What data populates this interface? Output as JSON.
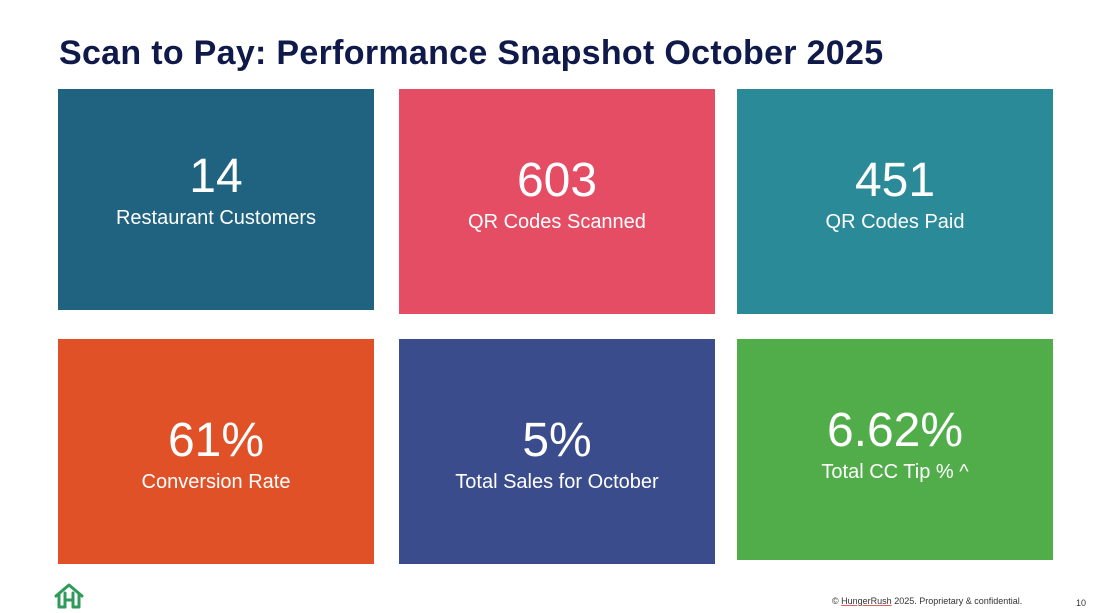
{
  "slide": {
    "title": "Scan to Pay: Performance Snapshot October 2025",
    "tiles": [
      {
        "metric": "14",
        "label": "Restaurant Customers",
        "color": "#1f6380"
      },
      {
        "metric": "603",
        "label": "QR Codes Scanned",
        "color": "#e44d64"
      },
      {
        "metric": "451",
        "label": "QR Codes Paid",
        "color": "#2b8a98"
      },
      {
        "metric": "61%",
        "label": "Conversion Rate",
        "color": "#e05128"
      },
      {
        "metric": "5%",
        "label": "Total Sales for October",
        "color": "#3a4c8b"
      },
      {
        "metric": "6.62%",
        "label": "Total CC Tip % ^",
        "color": "#51ad4a"
      }
    ],
    "logo_icon": "hungerrush-house-h-icon",
    "logo_color": "#2f9a5a",
    "footer": {
      "copyright_symbol": "©",
      "brand": "HungerRush",
      "rest": "2025. Proprietary & confidential.",
      "page_number": "10"
    }
  }
}
